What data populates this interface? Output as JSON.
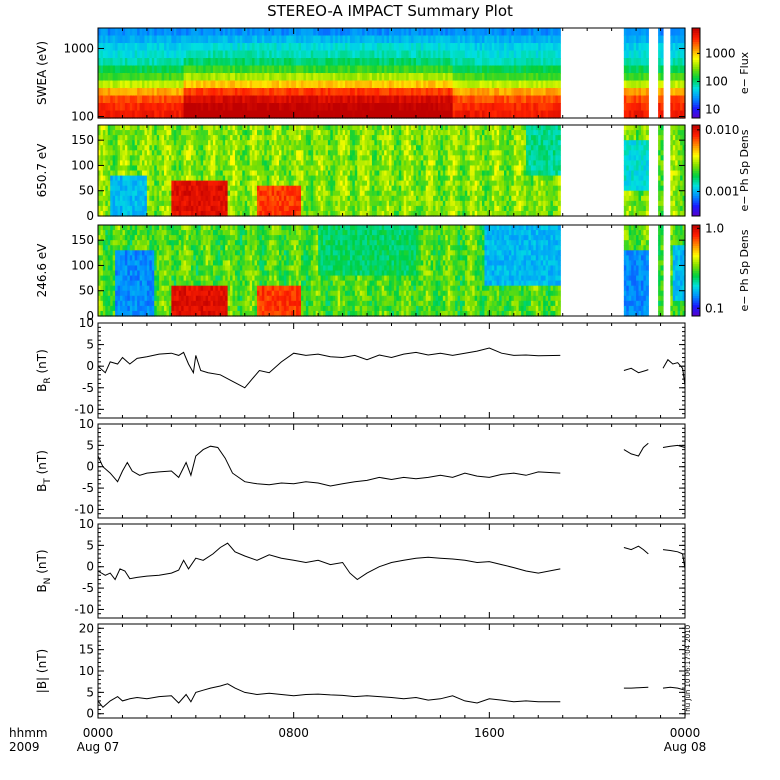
{
  "title": "STEREO-A IMPACT Summary Plot",
  "footer": {
    "hhmm": "hhmm",
    "year": "2009"
  },
  "timestamp_text": "Thu Jun 10 06:17:04 2010",
  "x_axis": {
    "ticks": [
      {
        "hour": 0,
        "top": "0000",
        "bottom": "Aug 07"
      },
      {
        "hour": 8,
        "top": "0800",
        "bottom": ""
      },
      {
        "hour": 16,
        "top": "1600",
        "bottom": ""
      },
      {
        "hour": 24,
        "top": "0000",
        "bottom": "Aug 08"
      }
    ],
    "range_hours": [
      0,
      24
    ],
    "minor_tick_hours": 1
  },
  "colors": {
    "colormap": [
      "#5a00c8",
      "#1a1aff",
      "#0090ff",
      "#00e0e0",
      "#00d040",
      "#80e000",
      "#ffff00",
      "#ff9000",
      "#ff2000",
      "#c00000"
    ],
    "line": "#000000"
  },
  "chart_data": [
    {
      "type": "heatmap",
      "panel": "swea",
      "ylabel": "SWEA (eV)",
      "ylog": true,
      "ylim": [
        95,
        2000
      ],
      "yticks": [
        {
          "v": 100,
          "label": "100"
        },
        {
          "v": 1000,
          "label": "1000"
        }
      ],
      "colorbar": {
        "label": "e− Flux",
        "log": true,
        "range": [
          5,
          8000
        ],
        "ticks": [
          {
            "v": 10,
            "label": "10"
          },
          {
            "v": 100,
            "label": "100"
          },
          {
            "v": 1000,
            "label": "1000"
          }
        ]
      },
      "energy_centers": [
        1800,
        1500,
        1100,
        800,
        600,
        450,
        330,
        250,
        190,
        150,
        120,
        105
      ],
      "profile_quiet": [
        2.0,
        2.4,
        2.8,
        3.0,
        3.3,
        3.9,
        4.5,
        5.5,
        6.8,
        7.6,
        8.0,
        8.2
      ],
      "profile_hot": [
        2.0,
        2.5,
        3.0,
        3.3,
        3.7,
        4.4,
        5.3,
        6.5,
        7.8,
        8.6,
        9.0,
        9.2
      ],
      "hot_intervals_hours": [
        [
          3.5,
          5.5
        ],
        [
          5.5,
          14.5
        ]
      ],
      "data_intervals_hours": [
        [
          0,
          18.9
        ],
        [
          21.5,
          22.5
        ],
        [
          22.9,
          23.1
        ],
        [
          23.4,
          24
        ]
      ]
    },
    {
      "type": "heatmap",
      "panel": "pad_650",
      "ylabel": "650.7 eV",
      "ylim": [
        0,
        180
      ],
      "yticks": [
        {
          "v": 0,
          "label": "0"
        },
        {
          "v": 50,
          "label": "50"
        },
        {
          "v": 100,
          "label": "100"
        },
        {
          "v": 150,
          "label": "150"
        }
      ],
      "colorbar": {
        "label": "e− Ph Sp Dens",
        "log": true,
        "range": [
          0.0004,
          0.012
        ],
        "ticks": [
          {
            "v": 0.001,
            "label": "0.001"
          },
          {
            "v": 0.01,
            "label": "0.010"
          }
        ]
      },
      "features": [
        {
          "x": [
            0.5,
            2.0
          ],
          "y": [
            0,
            80
          ],
          "level": 2.5
        },
        {
          "x": [
            3.0,
            5.3
          ],
          "y": [
            0,
            70
          ],
          "level": 8.5
        },
        {
          "x": [
            6.5,
            8.3
          ],
          "y": [
            0,
            60
          ],
          "level": 7.8
        },
        {
          "x": [
            17.5,
            18.9
          ],
          "y": [
            80,
            180
          ],
          "level": 3.5
        },
        {
          "x": [
            21.5,
            22.5
          ],
          "y": [
            50,
            150
          ],
          "level": 3.0
        }
      ],
      "base_level": 5.0,
      "data_intervals_hours": [
        [
          0,
          18.9
        ],
        [
          21.5,
          22.5
        ],
        [
          22.9,
          23.1
        ],
        [
          23.4,
          24
        ]
      ]
    },
    {
      "type": "heatmap",
      "panel": "pad_246",
      "ylabel": "246.6 eV",
      "ylim": [
        0,
        180
      ],
      "yticks": [
        {
          "v": 0,
          "label": "0"
        },
        {
          "v": 50,
          "label": "50"
        },
        {
          "v": 100,
          "label": "100"
        },
        {
          "v": 150,
          "label": "150"
        }
      ],
      "colorbar": {
        "label": "e− Ph Sp Dens",
        "log": true,
        "range": [
          0.08,
          1.1
        ],
        "ticks": [
          {
            "v": 0.1,
            "label": "0.1"
          },
          {
            "v": 1.0,
            "label": "1.0"
          }
        ]
      },
      "features": [
        {
          "x": [
            0.7,
            2.3
          ],
          "y": [
            0,
            130
          ],
          "level": 2.0
        },
        {
          "x": [
            3.0,
            5.3
          ],
          "y": [
            0,
            60
          ],
          "level": 8.5
        },
        {
          "x": [
            6.5,
            8.3
          ],
          "y": [
            0,
            55
          ],
          "level": 7.8
        },
        {
          "x": [
            9.0,
            13.0
          ],
          "y": [
            80,
            180
          ],
          "level": 3.8
        },
        {
          "x": [
            15.8,
            18.9
          ],
          "y": [
            60,
            180
          ],
          "level": 2.5
        },
        {
          "x": [
            21.5,
            22.5
          ],
          "y": [
            0,
            130
          ],
          "level": 2.0
        },
        {
          "x": [
            23.5,
            24.0
          ],
          "y": [
            30,
            140
          ],
          "level": 2.5
        }
      ],
      "base_level": 4.6,
      "data_intervals_hours": [
        [
          0,
          18.9
        ],
        [
          21.5,
          22.5
        ],
        [
          22.9,
          23.1
        ],
        [
          23.4,
          24
        ]
      ]
    },
    {
      "type": "line",
      "panel": "br",
      "ylabel_main": "B",
      "ylabel_sub": "R",
      "ylabel_unit": "(nT)",
      "ylim": [
        -12,
        10
      ],
      "yticks": [
        -10,
        -5,
        0,
        5,
        10
      ],
      "segments": [
        {
          "x": [
            0,
            0.3,
            0.5,
            0.8,
            1.0,
            1.3,
            1.6,
            2.0,
            2.5,
            3.0,
            3.3,
            3.5,
            3.7,
            3.9,
            4.0,
            4.2,
            4.5,
            5.0,
            5.5,
            6.0,
            6.3,
            6.6,
            7.0,
            7.5,
            8.0,
            8.5,
            9.0,
            9.5,
            10.0,
            10.5,
            11.0,
            11.5,
            12.0,
            12.5,
            13.0,
            13.5,
            14.0,
            14.5,
            15.0,
            15.5,
            16.0,
            16.5,
            17.0,
            17.5,
            18.0,
            18.9
          ],
          "y": [
            0,
            -1.5,
            1,
            0.5,
            2,
            0.5,
            1.8,
            2.2,
            2.8,
            3.0,
            2.5,
            3.2,
            0.5,
            -1.5,
            2.5,
            -1.0,
            -1.5,
            -2.0,
            -3.5,
            -5.0,
            -3.0,
            -1.0,
            -1.5,
            1.0,
            3.0,
            2.5,
            2.8,
            2.2,
            2.0,
            2.5,
            1.5,
            2.6,
            2.0,
            2.8,
            3.2,
            2.6,
            3.0,
            2.5,
            3.0,
            3.5,
            4.2,
            3.0,
            2.5,
            2.6,
            2.4,
            2.5
          ]
        },
        {
          "x": [
            21.5,
            21.8,
            22.1,
            22.4,
            22.5
          ],
          "y": [
            -1.0,
            -0.5,
            -1.5,
            -1.0,
            -0.8
          ]
        },
        {
          "x": [
            23.1,
            23.3,
            23.5,
            23.7,
            23.9,
            24.0
          ],
          "y": [
            -0.5,
            1.5,
            0.5,
            0.8,
            -0.5,
            -4.5
          ]
        }
      ]
    },
    {
      "type": "line",
      "panel": "bt",
      "ylabel_main": "B",
      "ylabel_sub": "T",
      "ylabel_unit": "(nT)",
      "ylim": [
        -12,
        10
      ],
      "yticks": [
        -10,
        -5,
        0,
        5,
        10
      ],
      "segments": [
        {
          "x": [
            0,
            0.2,
            0.5,
            0.8,
            1.0,
            1.2,
            1.4,
            1.7,
            2.0,
            2.5,
            3.0,
            3.3,
            3.6,
            3.8,
            4.0,
            4.3,
            4.6,
            4.9,
            5.2,
            5.5,
            6.0,
            6.5,
            7.0,
            7.5,
            8.0,
            8.5,
            9.0,
            9.5,
            10.0,
            10.5,
            11.0,
            11.5,
            12.0,
            12.5,
            13.0,
            13.5,
            14.0,
            14.5,
            15.0,
            15.5,
            16.0,
            16.5,
            17.0,
            17.5,
            18.0,
            18.9
          ],
          "y": [
            2.5,
            0,
            -1.5,
            -3.5,
            -1.0,
            1.0,
            -1.0,
            -2.0,
            -1.5,
            -1.2,
            -1.0,
            -2.5,
            1.0,
            -2.0,
            2.5,
            4.0,
            4.8,
            4.5,
            2.0,
            -1.5,
            -3.5,
            -4.0,
            -4.2,
            -3.8,
            -4.0,
            -3.5,
            -3.8,
            -4.5,
            -4.0,
            -3.5,
            -3.2,
            -2.5,
            -3.0,
            -2.5,
            -2.8,
            -2.5,
            -2.0,
            -2.5,
            -1.5,
            -2.2,
            -2.5,
            -1.8,
            -1.5,
            -2.0,
            -1.2,
            -1.5
          ]
        },
        {
          "x": [
            21.5,
            21.8,
            22.1,
            22.3,
            22.5
          ],
          "y": [
            4.0,
            3.0,
            2.5,
            4.5,
            5.5
          ]
        },
        {
          "x": [
            23.1,
            23.4,
            23.7,
            24.0
          ],
          "y": [
            4.5,
            4.8,
            5.0,
            4.5
          ]
        }
      ]
    },
    {
      "type": "line",
      "panel": "bn",
      "ylabel_main": "B",
      "ylabel_sub": "N",
      "ylabel_unit": "(nT)",
      "ylim": [
        -12,
        10
      ],
      "yticks": [
        -10,
        -5,
        0,
        5,
        10
      ],
      "segments": [
        {
          "x": [
            0,
            0.3,
            0.5,
            0.7,
            0.9,
            1.1,
            1.3,
            1.6,
            2.0,
            2.5,
            3.0,
            3.3,
            3.5,
            3.7,
            4.0,
            4.3,
            4.7,
            5.0,
            5.3,
            5.6,
            6.0,
            6.5,
            7.0,
            7.5,
            8.0,
            8.5,
            9.0,
            9.5,
            10.0,
            10.3,
            10.6,
            11.0,
            11.5,
            12.0,
            12.5,
            13.0,
            13.5,
            14.0,
            14.5,
            15.0,
            15.5,
            16.0,
            16.5,
            17.0,
            17.5,
            18.0,
            18.9
          ],
          "y": [
            -1.0,
            -2.0,
            -1.5,
            -3.0,
            -0.5,
            -1.0,
            -2.8,
            -2.5,
            -2.2,
            -2.0,
            -1.5,
            -0.8,
            1.5,
            -0.5,
            2.0,
            1.5,
            3.0,
            4.5,
            5.5,
            3.5,
            2.5,
            1.5,
            2.8,
            2.0,
            1.5,
            1.0,
            1.5,
            0.5,
            1.0,
            -1.5,
            -3.0,
            -1.5,
            0.0,
            1.0,
            1.5,
            2.0,
            2.2,
            2.0,
            1.8,
            1.5,
            1.0,
            1.2,
            0.5,
            -0.2,
            -1.0,
            -1.5,
            -0.5
          ]
        },
        {
          "x": [
            21.5,
            21.8,
            22.1,
            22.3,
            22.5
          ],
          "y": [
            4.5,
            4.0,
            4.8,
            4.0,
            3.0
          ]
        },
        {
          "x": [
            23.1,
            23.4,
            23.7,
            23.9,
            24.0
          ],
          "y": [
            4.0,
            3.8,
            3.5,
            3.0,
            -0.5
          ]
        }
      ]
    },
    {
      "type": "line",
      "panel": "btot",
      "ylabel_main": "|B|",
      "ylabel_sub": "",
      "ylabel_unit": "(nT)",
      "ylim": [
        -1,
        21
      ],
      "yticks": [
        0,
        5,
        10,
        15,
        20
      ],
      "segments": [
        {
          "x": [
            0,
            0.2,
            0.5,
            0.8,
            1.0,
            1.3,
            1.6,
            2.0,
            2.5,
            3.0,
            3.3,
            3.6,
            3.8,
            4.0,
            4.3,
            4.6,
            5.0,
            5.3,
            5.6,
            6.0,
            6.5,
            7.0,
            7.5,
            8.0,
            8.5,
            9.0,
            9.5,
            10.0,
            10.5,
            11.0,
            11.5,
            12.0,
            12.5,
            13.0,
            13.5,
            14.0,
            14.5,
            15.0,
            15.5,
            16.0,
            16.5,
            17.0,
            17.5,
            18.0,
            18.9
          ],
          "y": [
            3.0,
            1.5,
            3.0,
            4.0,
            3.0,
            3.5,
            3.8,
            3.5,
            4.0,
            4.2,
            2.5,
            4.5,
            2.8,
            5.0,
            5.5,
            6.0,
            6.5,
            7.0,
            6.0,
            5.0,
            4.5,
            4.8,
            4.5,
            4.2,
            4.5,
            4.6,
            4.4,
            4.3,
            4.0,
            4.2,
            4.0,
            3.8,
            3.5,
            3.8,
            3.2,
            3.5,
            4.2,
            3.0,
            2.5,
            3.5,
            3.2,
            2.8,
            3.0,
            2.8,
            2.8
          ]
        },
        {
          "x": [
            21.5,
            21.8,
            22.1,
            22.5
          ],
          "y": [
            6.0,
            6.0,
            6.1,
            6.2
          ]
        },
        {
          "x": [
            23.1,
            23.4,
            23.7,
            24.0
          ],
          "y": [
            6.0,
            6.2,
            6.0,
            5.5
          ]
        }
      ]
    }
  ]
}
